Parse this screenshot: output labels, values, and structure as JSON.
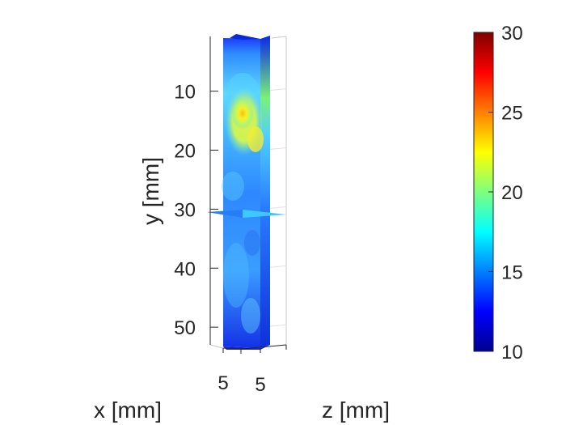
{
  "chart_data": {
    "type": "heatmap",
    "plot": "3d-slice-volume",
    "title": "",
    "xlabel": "x [mm]",
    "ylabel": "y [mm]",
    "zlabel": "z [mm]",
    "y_ticks": [
      10,
      20,
      30,
      40,
      50
    ],
    "y_tick_labels": [
      "10",
      "20",
      "30",
      "40",
      "50"
    ],
    "ylim": [
      1,
      53
    ],
    "y_reversed": true,
    "x_tick_labels": [
      "5"
    ],
    "z_tick_labels": [
      "5"
    ],
    "horizontal_slice_y": 30,
    "colormap": "jet",
    "clim": [
      10,
      30
    ],
    "colorbar_ticks": [
      10,
      15,
      20,
      25,
      30
    ],
    "colorbar_tick_labels": [
      "10",
      "15",
      "20",
      "25",
      "30"
    ],
    "colorbar_placement": "right",
    "grid": true,
    "hotspot": {
      "y_center": 15,
      "value": 24
    }
  }
}
